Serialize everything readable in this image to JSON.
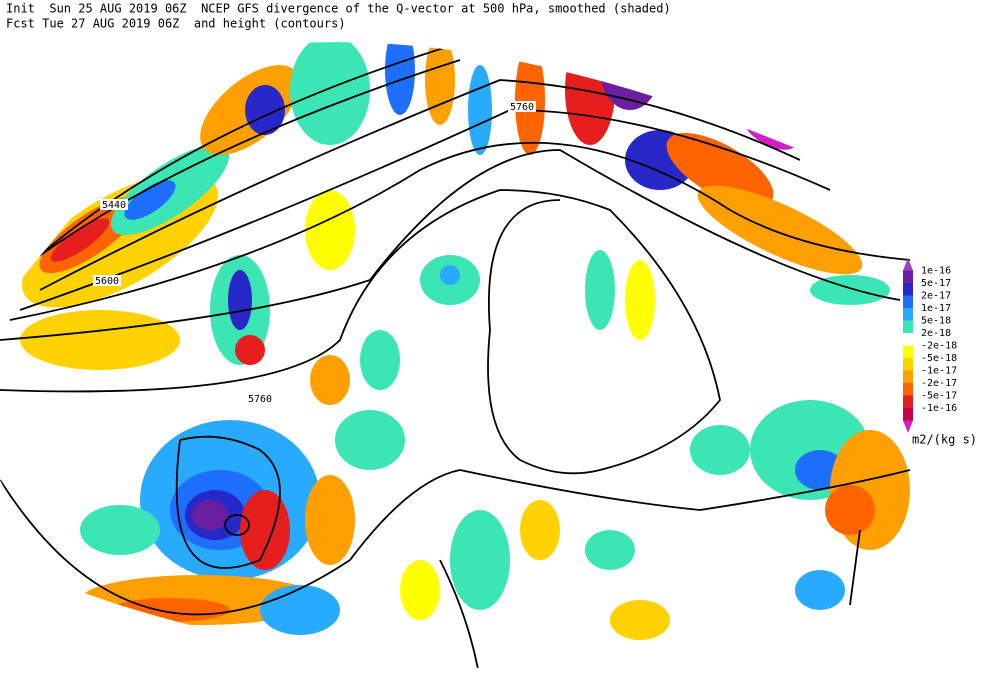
{
  "header": {
    "line1": "Init  Sun 25 AUG 2019 06Z  NCEP GFS divergence of the Q-vector at 500 hPa, smoothed (shaded)",
    "line2": "Fcst Tue 27 AUG 2019 06Z  and height (contours)"
  },
  "contour_labels": [
    "5440",
    "5600",
    "5760",
    "5760"
  ],
  "colorbar": {
    "labels": [
      "1e-16",
      "5e-17",
      "2e-17",
      "1e-17",
      "5e-18",
      "2e-18",
      "-2e-18",
      "-5e-18",
      "-1e-17",
      "-2e-17",
      "-5e-17",
      "-1e-16"
    ],
    "colors": [
      "#a040c0",
      "#6a1fa0",
      "#2828c8",
      "#1e6eff",
      "#28aaff",
      "#3ce6b4",
      "#ffffff",
      "#ffff00",
      "#ffd200",
      "#ffa000",
      "#ff6400",
      "#e61e1e",
      "#c8004b",
      "#d21ec8"
    ],
    "units": "m2/(kg s)"
  }
}
